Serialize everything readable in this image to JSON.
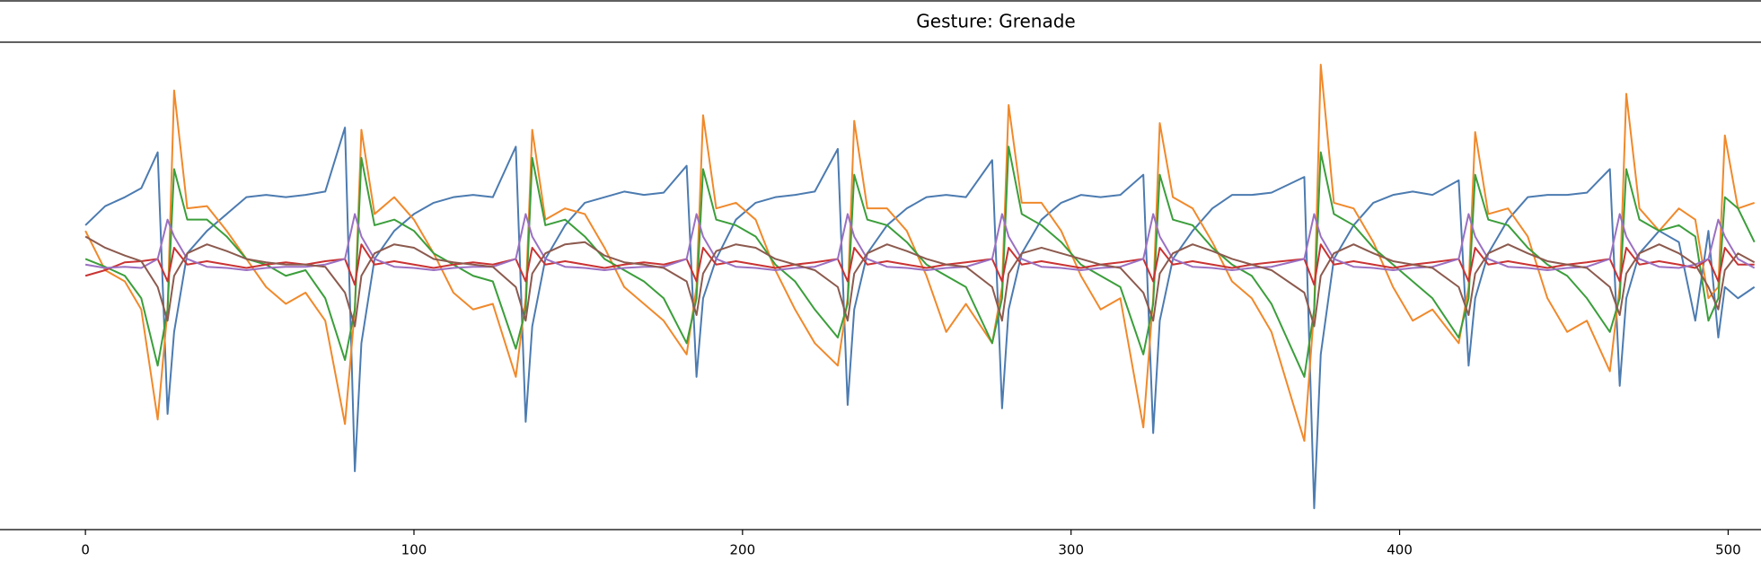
{
  "chart_data": {
    "type": "line",
    "title": "Gesture: Grenade",
    "x": [
      0,
      6,
      12,
      17,
      22,
      25,
      27,
      31,
      37,
      43,
      49,
      55,
      61,
      67,
      73,
      79,
      82,
      84,
      88,
      94,
      100,
      106,
      112,
      118,
      124,
      131,
      134,
      136,
      140,
      146,
      152,
      158,
      164,
      170,
      176,
      183,
      186,
      188,
      192,
      198,
      204,
      210,
      216,
      222,
      229,
      232,
      234,
      238,
      244,
      250,
      256,
      262,
      268,
      276,
      279,
      281,
      285,
      291,
      297,
      303,
      309,
      315,
      322,
      325,
      327,
      331,
      337,
      343,
      349,
      355,
      361,
      371,
      374,
      376,
      380,
      386,
      392,
      398,
      404,
      410,
      418,
      421,
      423,
      427,
      433,
      439,
      445,
      451,
      457,
      464,
      467,
      469,
      473,
      479,
      485,
      490,
      494,
      497,
      499,
      503,
      508
    ],
    "xlim": [
      -26,
      510
    ],
    "xticks": [
      0,
      100,
      200,
      300,
      400,
      500
    ],
    "ylim": [
      -236,
      198
    ],
    "series": [
      {
        "color": "#4c7bb0",
        "values": [
          35,
          52,
          60,
          68,
          100,
          -133,
          -60,
          10,
          30,
          45,
          60,
          62,
          60,
          62,
          65,
          122,
          -184,
          -70,
          5,
          30,
          45,
          55,
          60,
          62,
          60,
          105,
          -140,
          -55,
          5,
          35,
          55,
          60,
          65,
          62,
          64,
          88,
          -100,
          -30,
          5,
          40,
          55,
          60,
          62,
          65,
          103,
          -125,
          -40,
          10,
          35,
          50,
          60,
          62,
          60,
          93,
          -128,
          -40,
          10,
          40,
          55,
          62,
          60,
          62,
          80,
          -150,
          -50,
          5,
          30,
          50,
          62,
          62,
          64,
          78,
          -217,
          -80,
          5,
          35,
          55,
          62,
          65,
          62,
          75,
          -90,
          -30,
          10,
          40,
          60,
          62,
          62,
          64,
          85,
          -108,
          -30,
          10,
          30,
          20,
          -50,
          30,
          -65,
          -20,
          -30,
          -20
        ]
      },
      {
        "color": "#f0892b",
        "values": [
          30,
          -5,
          -15,
          -40,
          -138,
          -40,
          155,
          50,
          52,
          30,
          5,
          -20,
          -35,
          -25,
          -50,
          -142,
          -40,
          120,
          45,
          60,
          40,
          10,
          -25,
          -40,
          -35,
          -100,
          -30,
          120,
          40,
          50,
          45,
          15,
          -20,
          -35,
          -50,
          -80,
          -20,
          133,
          50,
          55,
          40,
          -5,
          -40,
          -70,
          -90,
          -30,
          128,
          50,
          50,
          30,
          -10,
          -60,
          -35,
          -70,
          -20,
          142,
          55,
          55,
          30,
          -10,
          -40,
          -30,
          -145,
          -30,
          126,
          60,
          50,
          20,
          -15,
          -30,
          -60,
          -157,
          -40,
          178,
          55,
          50,
          20,
          -20,
          -50,
          -40,
          -70,
          -20,
          118,
          45,
          50,
          25,
          -30,
          -60,
          -50,
          -95,
          -20,
          152,
          50,
          30,
          50,
          40,
          -30,
          -20,
          115,
          50,
          55
        ]
      },
      {
        "color": "#3b9e3b",
        "values": [
          5,
          -2,
          -10,
          -30,
          -90,
          -40,
          85,
          40,
          40,
          25,
          5,
          0,
          -10,
          -5,
          -30,
          -85,
          -40,
          95,
          35,
          40,
          30,
          10,
          0,
          -10,
          -15,
          -75,
          -40,
          95,
          35,
          40,
          25,
          5,
          -5,
          -15,
          -30,
          -70,
          -30,
          85,
          40,
          35,
          25,
          0,
          -15,
          -40,
          -65,
          -35,
          80,
          40,
          35,
          20,
          0,
          -10,
          -20,
          -70,
          -30,
          105,
          45,
          35,
          20,
          0,
          -10,
          -20,
          -80,
          -35,
          80,
          40,
          35,
          15,
          0,
          -10,
          -35,
          -100,
          -40,
          100,
          45,
          35,
          15,
          0,
          -15,
          -30,
          -65,
          -30,
          80,
          40,
          35,
          15,
          0,
          -10,
          -30,
          -60,
          -30,
          85,
          40,
          30,
          35,
          25,
          -50,
          -30,
          60,
          50,
          20
        ]
      },
      {
        "color": "#c93333",
        "values": [
          -10,
          -5,
          2,
          3,
          5,
          -15,
          15,
          0,
          3,
          0,
          -3,
          0,
          2,
          0,
          3,
          5,
          -18,
          18,
          0,
          3,
          0,
          -3,
          0,
          2,
          0,
          5,
          -15,
          15,
          0,
          3,
          0,
          -3,
          0,
          2,
          0,
          5,
          -15,
          15,
          0,
          3,
          0,
          -3,
          0,
          2,
          5,
          -15,
          15,
          0,
          3,
          0,
          -3,
          0,
          2,
          5,
          -15,
          15,
          0,
          3,
          0,
          -3,
          0,
          2,
          5,
          -15,
          15,
          0,
          3,
          0,
          -3,
          0,
          2,
          5,
          -18,
          18,
          0,
          3,
          0,
          -3,
          0,
          2,
          5,
          -15,
          15,
          0,
          3,
          0,
          -3,
          0,
          2,
          5,
          -15,
          15,
          0,
          3,
          0,
          -3,
          5,
          -15,
          15,
          0,
          0
        ]
      },
      {
        "color": "#9a70c2",
        "values": [
          0,
          -3,
          -2,
          -3,
          5,
          40,
          25,
          5,
          -2,
          -3,
          -5,
          -3,
          -2,
          -2,
          0,
          5,
          45,
          25,
          5,
          -2,
          -3,
          -5,
          -3,
          -2,
          -2,
          5,
          45,
          25,
          5,
          -2,
          -3,
          -5,
          -3,
          -2,
          -2,
          5,
          45,
          25,
          5,
          -2,
          -3,
          -5,
          -3,
          -2,
          5,
          45,
          25,
          5,
          -2,
          -3,
          -5,
          -3,
          -2,
          5,
          45,
          25,
          5,
          -2,
          -3,
          -5,
          -3,
          -2,
          5,
          45,
          25,
          5,
          -2,
          -3,
          -5,
          -3,
          -2,
          5,
          45,
          25,
          5,
          -2,
          -3,
          -5,
          -3,
          -2,
          5,
          45,
          25,
          5,
          -2,
          -3,
          -5,
          -3,
          -2,
          5,
          45,
          25,
          5,
          -2,
          -3,
          0,
          5,
          40,
          25,
          5,
          -3
        ]
      },
      {
        "color": "#8c5a4e",
        "values": [
          25,
          15,
          8,
          3,
          -20,
          -50,
          -10,
          10,
          18,
          12,
          5,
          2,
          0,
          0,
          -2,
          -25,
          -55,
          -10,
          10,
          18,
          15,
          5,
          2,
          0,
          -2,
          -20,
          -50,
          -8,
          10,
          18,
          20,
          8,
          2,
          0,
          -3,
          -15,
          -45,
          -8,
          12,
          18,
          15,
          5,
          0,
          -5,
          -20,
          -50,
          -8,
          10,
          18,
          12,
          5,
          0,
          -2,
          -20,
          -50,
          -8,
          10,
          15,
          10,
          5,
          0,
          -3,
          -25,
          -50,
          -8,
          10,
          18,
          12,
          5,
          0,
          -5,
          -25,
          -55,
          -10,
          10,
          18,
          10,
          3,
          0,
          -3,
          -20,
          -45,
          -8,
          10,
          18,
          10,
          3,
          0,
          -3,
          -20,
          -45,
          -8,
          10,
          18,
          10,
          0,
          -20,
          -40,
          -5,
          10,
          2
        ]
      }
    ]
  }
}
